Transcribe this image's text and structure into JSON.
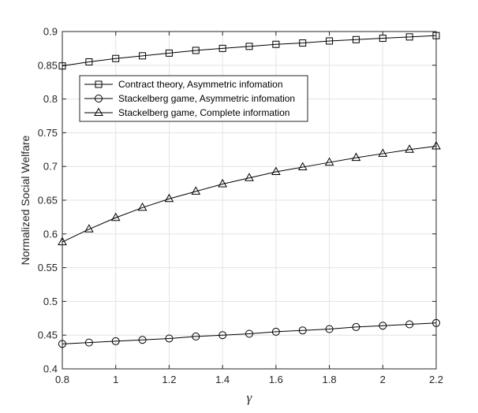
{
  "chart_data": {
    "type": "line",
    "xlabel": "γ",
    "ylabel": "Normalized Social Welfare",
    "xlim": [
      0.8,
      2.2
    ],
    "ylim": [
      0.4,
      0.9
    ],
    "xticks": [
      0.8,
      1,
      1.2,
      1.4,
      1.6,
      1.8,
      2,
      2.2
    ],
    "xtick_labels": [
      "0.8",
      "1",
      "1.2",
      "1.4",
      "1.6",
      "1.8",
      "2",
      "2.2"
    ],
    "yticks": [
      0.4,
      0.45,
      0.5,
      0.55,
      0.6,
      0.65,
      0.7,
      0.75,
      0.8,
      0.85,
      0.9
    ],
    "ytick_labels": [
      "0.4",
      "0.45",
      "0.5",
      "0.55",
      "0.6",
      "0.65",
      "0.7",
      "0.75",
      "0.8",
      "0.85",
      "0.9"
    ],
    "grid": true,
    "legend_position": "upper-left",
    "x": [
      0.8,
      0.9,
      1.0,
      1.1,
      1.2,
      1.3,
      1.4,
      1.5,
      1.6,
      1.7,
      1.8,
      1.9,
      2.0,
      2.1,
      2.2
    ],
    "series": [
      {
        "name": "Contract theory, Asymmetric infomation",
        "marker": "square",
        "values": [
          0.849,
          0.855,
          0.86,
          0.864,
          0.868,
          0.872,
          0.875,
          0.878,
          0.881,
          0.883,
          0.886,
          0.888,
          0.89,
          0.892,
          0.894
        ]
      },
      {
        "name": "Stackelberg game, Asymmetric infomation",
        "marker": "circle",
        "values": [
          0.437,
          0.439,
          0.441,
          0.443,
          0.445,
          0.448,
          0.45,
          0.452,
          0.455,
          0.457,
          0.459,
          0.462,
          0.464,
          0.466,
          0.468
        ]
      },
      {
        "name": "Stackelberg game, Complete information",
        "marker": "triangle",
        "values": [
          0.588,
          0.607,
          0.624,
          0.639,
          0.652,
          0.663,
          0.674,
          0.683,
          0.692,
          0.699,
          0.706,
          0.713,
          0.719,
          0.725,
          0.73
        ]
      }
    ],
    "colors": {
      "line": "#000000",
      "grid": "#e3e3e3",
      "axis": "#262626"
    }
  }
}
